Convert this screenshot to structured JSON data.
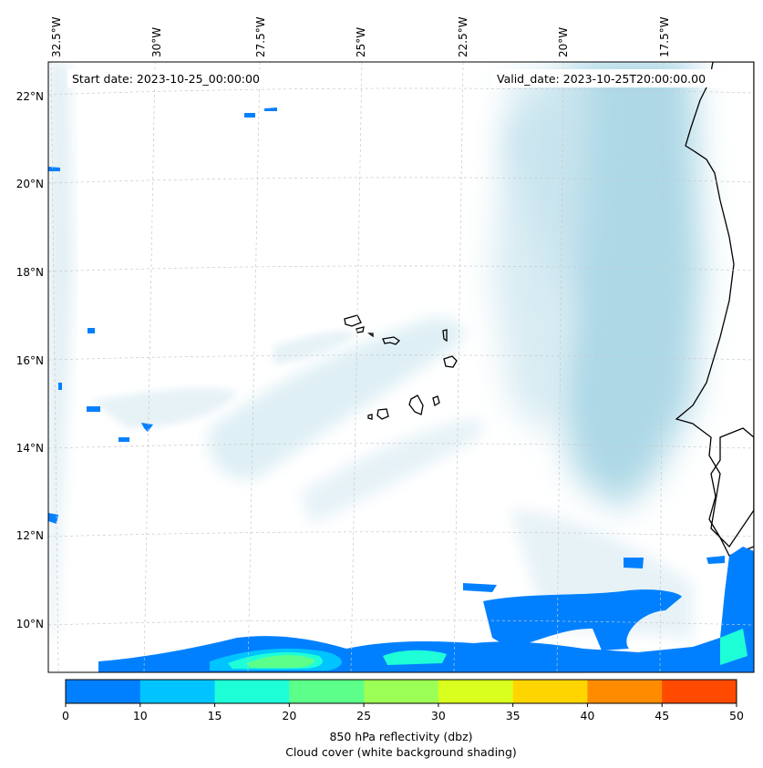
{
  "header": {
    "start_date": "Start date: 2023-10-25_00:00:00",
    "valid_date": "Valid_date: 2023-10-25T20:00:00.00"
  },
  "lon_labels": [
    "32.5°W",
    "30°W",
    "27.5°W",
    "25°W",
    "22.5°W",
    "20°W",
    "17.5°W"
  ],
  "lat_labels": [
    "22°N",
    "20°N",
    "18°N",
    "16°N",
    "14°N",
    "12°N",
    "10°N"
  ],
  "colorbar": {
    "ticks": [
      "0",
      "10",
      "15",
      "20",
      "25",
      "30",
      "35",
      "40",
      "45",
      "50"
    ],
    "colors": [
      "#0080ff",
      "#00c4ff",
      "#1effd8",
      "#5cff8a",
      "#9cff55",
      "#d9ff1e",
      "#ffd500",
      "#ff8c00",
      "#ff4a00"
    ],
    "label_line1": "850 hPa reflectivity (dbz)",
    "label_line2": "Cloud cover (white background shading)"
  },
  "colors": {
    "cloud": "#a9d6e5",
    "land": "#f4a460",
    "island": "#fbd9c2",
    "reflectivity_low": "#0080ff",
    "reflectivity_mid": "#1effd8",
    "reflectivity_high": "#5cff8a",
    "grid": "#c8c8c8"
  }
}
